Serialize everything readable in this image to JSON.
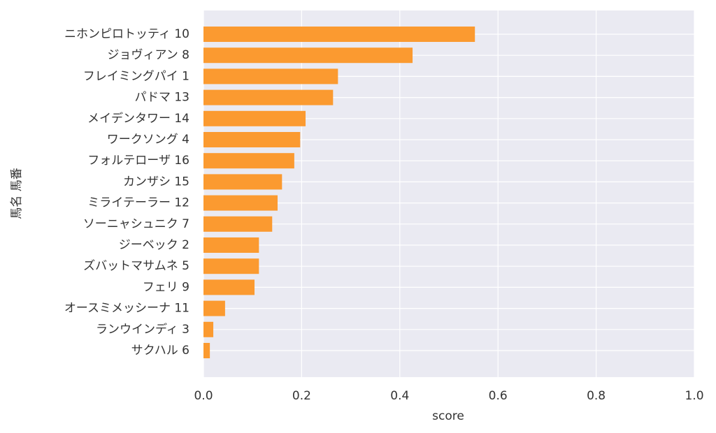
{
  "chart_data": {
    "type": "barh",
    "xlabel": "score",
    "ylabel": "馬名 馬番",
    "categories": [
      "ニホンピロトッティ 10",
      "ジョヴィアン 8",
      "フレイミングパイ 1",
      "パドマ 13",
      "メイデンタワー 14",
      "ワークソング 4",
      "フォルテローザ 16",
      "カンザシ 15",
      "ミライテーラー 12",
      "ソーニャシュニク 7",
      "ジーベック 2",
      "ズバットマサムネ 5",
      "フェリ 9",
      "オースミメッシーナ 11",
      "ランウインディ 3",
      "サクハル 6"
    ],
    "values": [
      0.553,
      0.426,
      0.274,
      0.264,
      0.208,
      0.197,
      0.185,
      0.16,
      0.151,
      0.14,
      0.113,
      0.113,
      0.104,
      0.044,
      0.02,
      0.013
    ],
    "color": "#fb9a30",
    "xlim": [
      0,
      1
    ],
    "xticks": [
      {
        "value": 0,
        "label": "0.0"
      },
      0.2,
      0.4,
      0.6,
      0.8,
      {
        "value": 1,
        "label": "1.0"
      }
    ],
    "grid": true
  }
}
